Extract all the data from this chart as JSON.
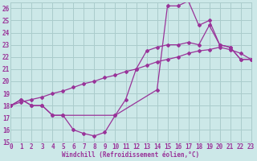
{
  "bg_color": "#cce8e8",
  "grid_color": "#aacccc",
  "line_color": "#993399",
  "xlim": [
    0,
    23
  ],
  "ylim": [
    15,
    26.5
  ],
  "xticks": [
    0,
    1,
    2,
    3,
    4,
    5,
    6,
    7,
    8,
    9,
    10,
    11,
    12,
    13,
    14,
    15,
    16,
    17,
    18,
    19,
    20,
    21,
    22,
    23
  ],
  "yticks": [
    15,
    16,
    17,
    18,
    19,
    20,
    21,
    22,
    23,
    24,
    25,
    26
  ],
  "xlabel": "Windchill (Refroidissement éolien,°C)",
  "series1_x": [
    0,
    1,
    2,
    3,
    4,
    5,
    6,
    7,
    8,
    9,
    10,
    14,
    15,
    16,
    17,
    18,
    19,
    20,
    21,
    22,
    23
  ],
  "series1_y": [
    18.0,
    18.5,
    18.0,
    18.0,
    17.2,
    17.2,
    16.0,
    15.7,
    15.5,
    15.8,
    17.2,
    19.3,
    26.2,
    26.2,
    26.6,
    24.6,
    25.0,
    23.0,
    22.8,
    21.8,
    21.8
  ],
  "series2_x": [
    0,
    1,
    2,
    3,
    4,
    5,
    6,
    7,
    8,
    9,
    10,
    11,
    12,
    13,
    14,
    15,
    16,
    17,
    18,
    19,
    20,
    21,
    22,
    23
  ],
  "series2_y": [
    18.0,
    18.3,
    18.5,
    18.7,
    19.0,
    19.2,
    19.5,
    19.8,
    20.0,
    20.3,
    20.5,
    20.8,
    21.0,
    21.3,
    21.6,
    21.8,
    22.0,
    22.3,
    22.5,
    22.6,
    22.8,
    22.6,
    22.3,
    21.8
  ],
  "series3_x": [
    0,
    1,
    2,
    3,
    4,
    5,
    10,
    11,
    12,
    13,
    14,
    15,
    16,
    17,
    18,
    19,
    20,
    21,
    22,
    23
  ],
  "series3_y": [
    18.0,
    18.5,
    18.0,
    18.0,
    17.2,
    17.2,
    17.2,
    18.5,
    21.0,
    22.5,
    22.8,
    23.0,
    23.0,
    23.2,
    23.0,
    24.6,
    23.0,
    22.8,
    21.8,
    21.8
  ]
}
